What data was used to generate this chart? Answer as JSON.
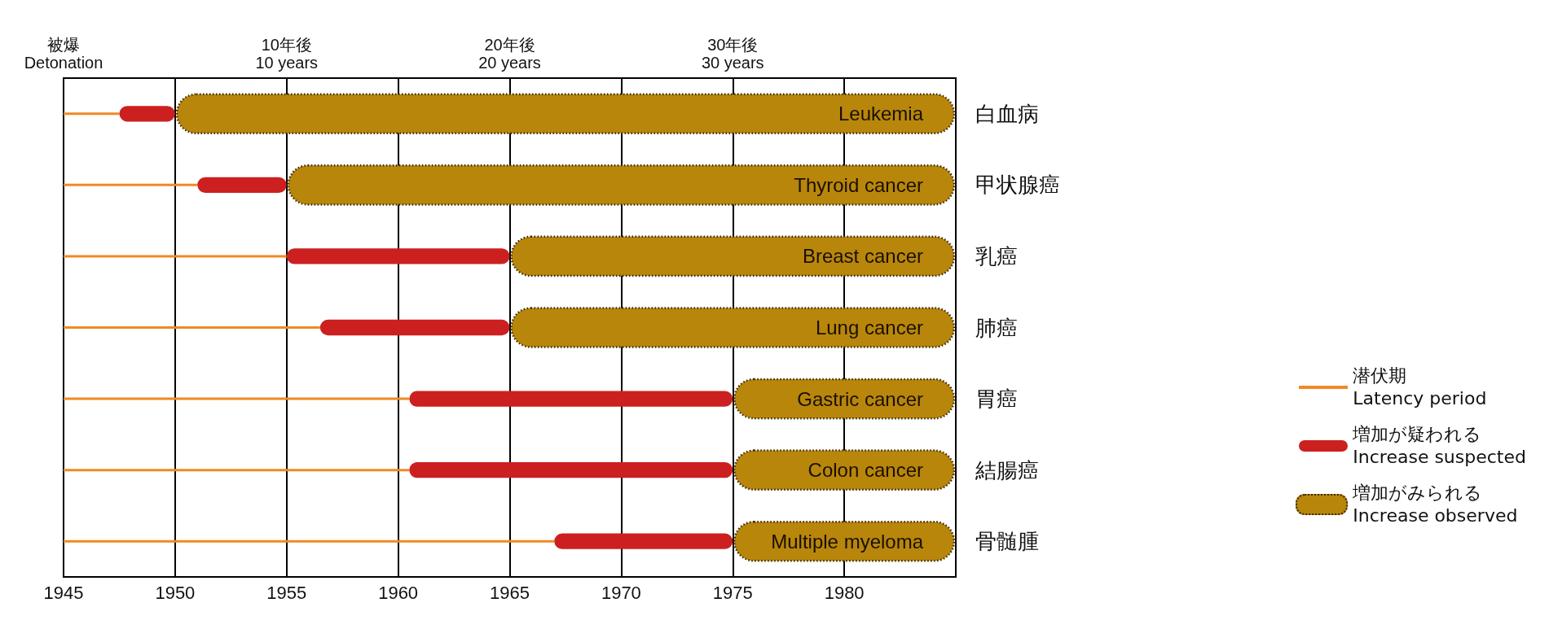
{
  "chart_data": {
    "type": "bar",
    "orientation": "horizontal",
    "categories": [
      "Leukemia",
      "Thyroid cancer",
      "Breast cancer",
      "Lung cancer",
      "Gastric cancer",
      "Colon cancer",
      "Multiple myeloma"
    ],
    "y2_categories": [
      "白血病",
      "甲状腺癌",
      "乳癌",
      "肺癌",
      "胃癌",
      "結腸癌",
      "骨髄腫"
    ],
    "series": [
      {
        "name": "潜伏期\nLatency period",
        "color": "#f08a24",
        "line_style": "dashed",
        "base": [
          1945,
          1945,
          1945,
          1945,
          1945,
          1945,
          1945
        ],
        "values": [
          2.5,
          6,
          10,
          11.5,
          15.5,
          15.5,
          22
        ]
      },
      {
        "name": "増加が疑われる\nIncrease suspected",
        "color": "#cc2020",
        "line_style": "dashed",
        "base": [
          1947.5,
          1951,
          1955,
          1956.5,
          1960.5,
          1960.5,
          1967
        ],
        "values": [
          2.5,
          4,
          10,
          8.5,
          14.5,
          14.5,
          8
        ]
      },
      {
        "name": "増加がみられる\nIncrease observed",
        "color": "#b8860b",
        "line_style": "solid",
        "base": [
          1950,
          1955,
          1965,
          1965,
          1975,
          1975,
          1975
        ],
        "values": [
          35,
          30,
          20,
          20,
          10,
          10,
          10
        ]
      }
    ],
    "xlim": [
      1945,
      1985
    ],
    "xticks": [
      1945,
      1950,
      1955,
      1960,
      1965,
      1970,
      1975,
      1980
    ],
    "annotations": [
      "被爆\nDetonation",
      "10年後\n10 years",
      "20年後\n20 years",
      "30年後\n30 years"
    ],
    "grid": "x",
    "legend": "right"
  }
}
